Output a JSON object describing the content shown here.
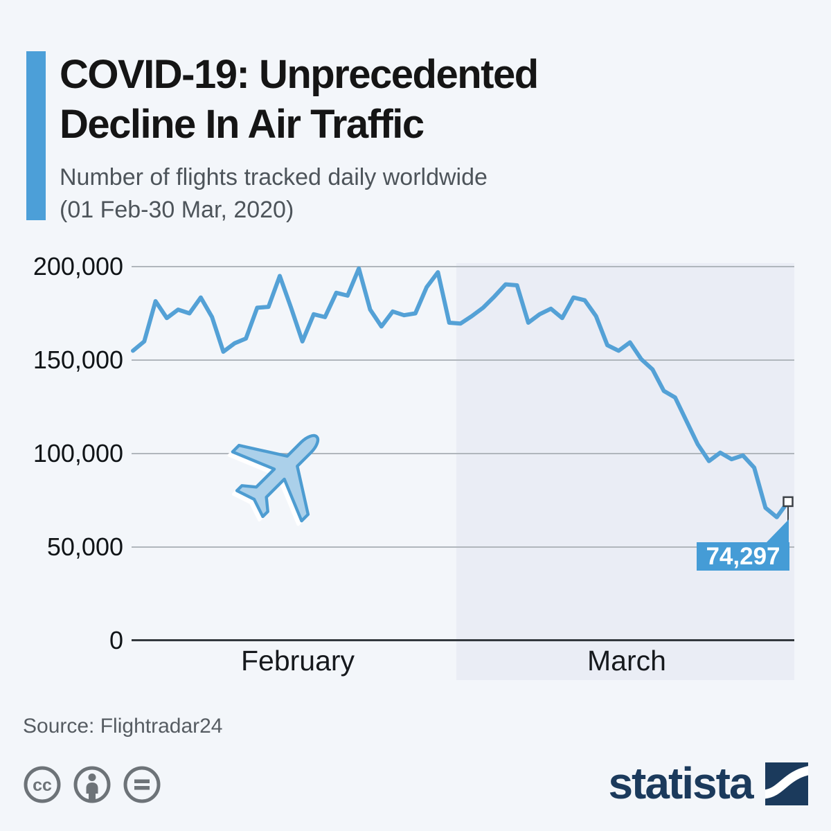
{
  "page": {
    "background": "#f3f6fa"
  },
  "header": {
    "accent_color": "#4c9fd8",
    "title_line1": "COVID-19: Unprecedented",
    "title_line2": "Decline In Air Traffic",
    "subtitle_line1": "Number of flights tracked daily worldwide",
    "subtitle_line2": "(01 Feb-30 Mar, 2020)"
  },
  "chart_data": {
    "type": "line",
    "title": "Number of flights tracked daily worldwide (01 Feb-30 Mar, 2020)",
    "ylim": [
      0,
      200000
    ],
    "grid": "horizontal",
    "legend": "none",
    "line_color": "#54a1d6",
    "grid_color": "#b0b6bc",
    "axis_color": "#33383d",
    "y_ticks": [
      {
        "label": "200,000",
        "value": 200000
      },
      {
        "label": "150,000",
        "value": 150000
      },
      {
        "label": "100,000",
        "value": 100000
      },
      {
        "label": "50,000",
        "value": 50000
      },
      {
        "label": "0",
        "value": 0
      }
    ],
    "x_axis_groups": [
      {
        "label": "February",
        "days": 29
      },
      {
        "label": "March",
        "days": 30
      }
    ],
    "highlight_region": {
      "label": "March",
      "color": "#eaedf5"
    },
    "x": [
      "Feb 1",
      "Feb 2",
      "Feb 3",
      "Feb 4",
      "Feb 5",
      "Feb 6",
      "Feb 7",
      "Feb 8",
      "Feb 9",
      "Feb 10",
      "Feb 11",
      "Feb 12",
      "Feb 13",
      "Feb 14",
      "Feb 15",
      "Feb 16",
      "Feb 17",
      "Feb 18",
      "Feb 19",
      "Feb 20",
      "Feb 21",
      "Feb 22",
      "Feb 23",
      "Feb 24",
      "Feb 25",
      "Feb 26",
      "Feb 27",
      "Feb 28",
      "Feb 29",
      "Mar 1",
      "Mar 2",
      "Mar 3",
      "Mar 4",
      "Mar 5",
      "Mar 6",
      "Mar 7",
      "Mar 8",
      "Mar 9",
      "Mar 10",
      "Mar 11",
      "Mar 12",
      "Mar 13",
      "Mar 14",
      "Mar 15",
      "Mar 16",
      "Mar 17",
      "Mar 18",
      "Mar 19",
      "Mar 20",
      "Mar 21",
      "Mar 22",
      "Mar 23",
      "Mar 24",
      "Mar 25",
      "Mar 26",
      "Mar 27",
      "Mar 28",
      "Mar 29",
      "Mar 30"
    ],
    "series": [
      {
        "name": "Flights tracked daily",
        "values": [
          155000,
          160000,
          181500,
          172500,
          177000,
          175000,
          183500,
          173000,
          154500,
          159000,
          161500,
          178000,
          178500,
          195000,
          178000,
          160000,
          174500,
          173000,
          186000,
          184500,
          199000,
          177000,
          168000,
          176000,
          174000,
          175000,
          189000,
          197000,
          170000,
          169500,
          173500,
          178000,
          184000,
          190500,
          190000,
          170000,
          174500,
          177500,
          172500,
          183500,
          182000,
          173500,
          158000,
          155000,
          159500,
          150500,
          145000,
          133500,
          130000,
          117500,
          105000,
          96000,
          100500,
          97000,
          99000,
          92500,
          71000,
          66000,
          74297
        ]
      }
    ],
    "annotation": {
      "label": "74,297",
      "value": 74297,
      "date": "Mar 30",
      "box_color": "#459cd6"
    }
  },
  "watermark": {
    "name": "airplane",
    "fill": "#abd0ea",
    "stroke": "#4d9cd1"
  },
  "footer": {
    "source": "Source: Flightradar24",
    "license_icons": [
      "cc",
      "by-person",
      "equals"
    ],
    "icon_color": "#6d7378",
    "brand": "statista",
    "brand_color": "#1b3a5c"
  }
}
